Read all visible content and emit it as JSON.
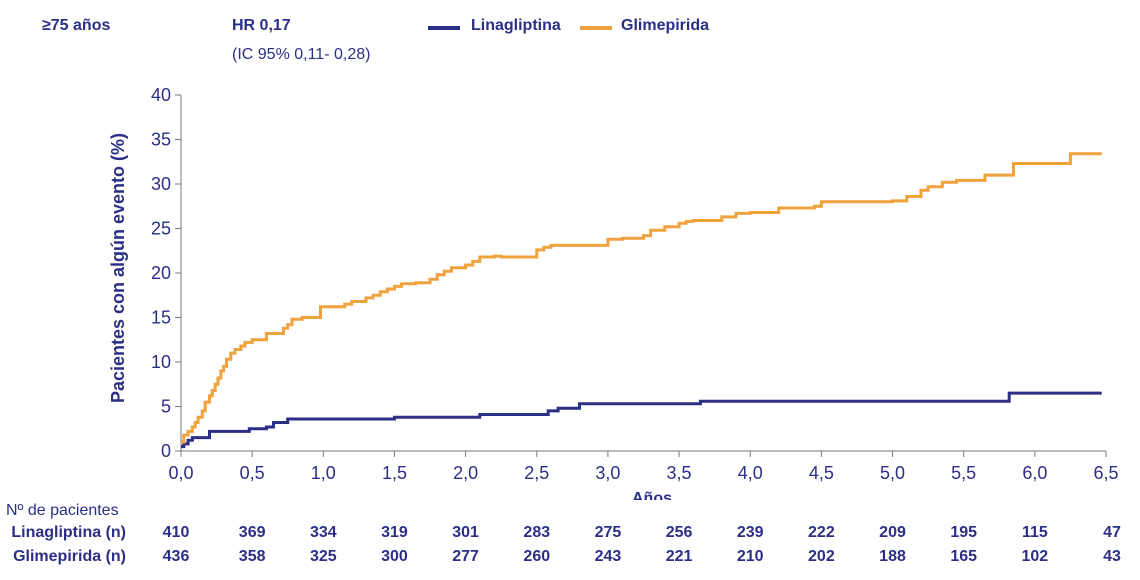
{
  "header": {
    "subgroup": "≥75 años",
    "hr": "HR 0,17",
    "ci": "(IC 95% 0,11- 0,28)"
  },
  "legend": [
    {
      "name": "Linagliptina",
      "color": "#2b2f86"
    },
    {
      "name": "Glimepirida",
      "color": "#f0a23c"
    }
  ],
  "chart_data": {
    "type": "line",
    "step": true,
    "title": "",
    "xlabel": "Años",
    "ylabel": "Pacientes con algún evento (%)",
    "xlim": [
      0,
      6.5
    ],
    "ylim": [
      0,
      40
    ],
    "x_ticks": [
      "0,0",
      "0,5",
      "1,0",
      "1,5",
      "2,0",
      "2,5",
      "3,0",
      "3,5",
      "4,0",
      "4,5",
      "5,0",
      "5,5",
      "6,0",
      "6,5"
    ],
    "y_ticks": [
      "0",
      "5",
      "10",
      "15",
      "20",
      "25",
      "30",
      "35",
      "40"
    ],
    "grid": false,
    "series": [
      {
        "name": "Linagliptina",
        "color": "#2b2f86",
        "x": [
          0,
          0.02,
          0.05,
          0.08,
          0.2,
          0.48,
          0.6,
          0.65,
          0.75,
          1.5,
          2.1,
          2.58,
          2.65,
          2.8,
          3.65,
          5.3,
          5.82,
          6.47
        ],
        "y": [
          0.5,
          0.8,
          1.2,
          1.5,
          2.2,
          2.5,
          2.7,
          3.2,
          3.6,
          3.8,
          4.1,
          4.5,
          4.8,
          5.3,
          5.6,
          5.6,
          6.5,
          6.5
        ]
      },
      {
        "name": "Glimepirida",
        "color": "#f0a23c",
        "x": [
          0,
          0.02,
          0.05,
          0.08,
          0.1,
          0.12,
          0.15,
          0.17,
          0.2,
          0.22,
          0.24,
          0.26,
          0.28,
          0.3,
          0.32,
          0.35,
          0.38,
          0.42,
          0.45,
          0.5,
          0.6,
          0.72,
          0.75,
          0.78,
          0.85,
          0.98,
          1.15,
          1.2,
          1.3,
          1.35,
          1.4,
          1.45,
          1.5,
          1.55,
          1.65,
          1.75,
          1.8,
          1.85,
          1.9,
          2.0,
          2.05,
          2.1,
          2.2,
          2.25,
          2.5,
          2.55,
          2.6,
          3.0,
          3.1,
          3.25,
          3.3,
          3.4,
          3.5,
          3.55,
          3.6,
          3.8,
          3.9,
          4.0,
          4.2,
          4.45,
          4.5,
          5.0,
          5.1,
          5.2,
          5.25,
          5.35,
          5.45,
          5.65,
          5.85,
          6.25,
          6.47
        ],
        "y": [
          1.0,
          1.8,
          2.2,
          2.7,
          3.2,
          3.8,
          4.5,
          5.5,
          6.2,
          6.8,
          7.5,
          8.2,
          9.0,
          9.5,
          10.3,
          11.0,
          11.4,
          11.8,
          12.2,
          12.5,
          13.2,
          13.8,
          14.2,
          14.8,
          15.0,
          16.2,
          16.5,
          16.8,
          17.2,
          17.5,
          17.9,
          18.2,
          18.5,
          18.8,
          18.9,
          19.3,
          19.8,
          20.2,
          20.6,
          20.9,
          21.3,
          21.8,
          21.9,
          21.8,
          22.6,
          22.9,
          23.1,
          23.8,
          23.9,
          24.2,
          24.8,
          25.2,
          25.6,
          25.8,
          25.9,
          26.3,
          26.7,
          26.8,
          27.3,
          27.5,
          28.0,
          28.1,
          28.6,
          29.3,
          29.7,
          30.2,
          30.4,
          31.0,
          32.3,
          33.4,
          33.4
        ]
      }
    ]
  },
  "risk_table": {
    "header": "Nº de pacientes",
    "rows": [
      {
        "label": "Linagliptina (n)",
        "values": [
          "410",
          "369",
          "334",
          "319",
          "301",
          "283",
          "275",
          "256",
          "239",
          "222",
          "209",
          "195",
          "115",
          "47"
        ]
      },
      {
        "label": "Glimepirida (n)",
        "values": [
          "436",
          "358",
          "325",
          "300",
          "277",
          "260",
          "243",
          "221",
          "210",
          "202",
          "188",
          "165",
          "102",
          "43"
        ]
      }
    ]
  }
}
